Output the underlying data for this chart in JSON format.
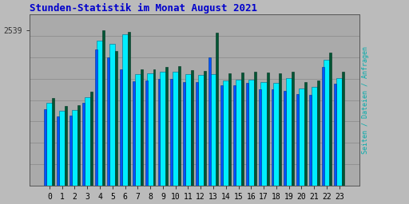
{
  "title": "Stunden-Statistik im Monat August 2021",
  "ylabel": "Seiten / Dateien / Anfragen",
  "hours": [
    0,
    1,
    2,
    3,
    4,
    5,
    6,
    7,
    8,
    9,
    10,
    11,
    12,
    13,
    14,
    15,
    16,
    17,
    18,
    19,
    20,
    21,
    22,
    23
  ],
  "seiten": [
    1350,
    1220,
    1240,
    1450,
    2380,
    2320,
    2480,
    1820,
    1840,
    1870,
    1870,
    1820,
    1810,
    1820,
    1720,
    1730,
    1730,
    1690,
    1680,
    1760,
    1590,
    1620,
    2060,
    1760
  ],
  "dateien": [
    1250,
    1130,
    1150,
    1350,
    2230,
    2100,
    1900,
    1710,
    1720,
    1750,
    1750,
    1690,
    1700,
    2100,
    1640,
    1640,
    1680,
    1580,
    1580,
    1550,
    1500,
    1480,
    1940,
    1670
  ],
  "anfragen": [
    1430,
    1300,
    1320,
    1540,
    2539,
    2200,
    2520,
    1900,
    1900,
    1940,
    1960,
    1890,
    1880,
    2500,
    1840,
    1850,
    1860,
    1850,
    1840,
    1870,
    1690,
    1720,
    2180,
    1860
  ],
  "ylim_max": 2800,
  "ytick_val": 2539,
  "title_color": "#0000cc",
  "title_fontsize": 9,
  "bar_color_seiten": "#00eeff",
  "bar_color_dateien": "#0055ff",
  "bar_color_anfragen": "#005533",
  "bar_edge_seiten": "#006688",
  "bar_edge_dateien": "#003388",
  "bar_edge_anfragen": "#003322",
  "bg_outer": "#bbbbbb",
  "bg_plot": "#aaaaaa",
  "ylabel_color": "#00aaaa",
  "ylabel_fontsize": 6,
  "grid_color": "#888888",
  "tick_fontsize": 7,
  "ytick_color": "#333333",
  "xlabel_fontsize": 7
}
